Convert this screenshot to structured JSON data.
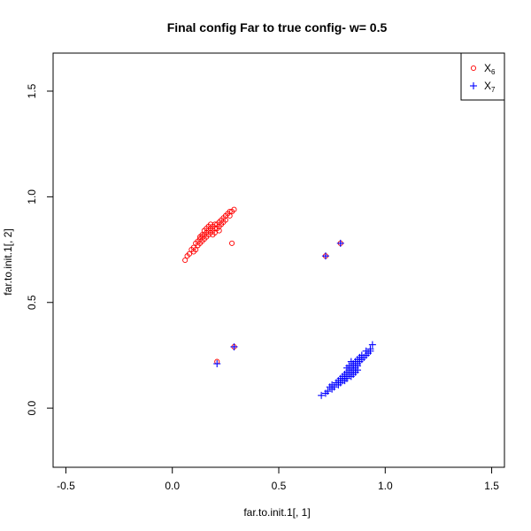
{
  "chart_data": {
    "type": "scatter",
    "title": "Final config Far to true config- w= 0.5",
    "xlabel": "far.to.init.1[, 1]",
    "ylabel": "far.to.init.1[, 2]",
    "xlim": [
      -0.56,
      1.56
    ],
    "ylim": [
      -0.28,
      1.68
    ],
    "xticks": [
      -0.5,
      0.0,
      0.5,
      1.0,
      1.5
    ],
    "xtick_labels": [
      "-0.5",
      "0.0",
      "0.5",
      "1.0",
      "1.5"
    ],
    "yticks": [
      0.0,
      0.5,
      1.0,
      1.5
    ],
    "ytick_labels": [
      "0.0",
      "0.5",
      "1.0",
      "1.5"
    ],
    "grid": false,
    "legend_position": "top-right",
    "series": [
      {
        "name": "X",
        "subscript": "6",
        "marker": "circle",
        "color": "#ff0000",
        "points": [
          [
            0.06,
            0.7
          ],
          [
            0.07,
            0.72
          ],
          [
            0.08,
            0.73
          ],
          [
            0.09,
            0.75
          ],
          [
            0.1,
            0.76
          ],
          [
            0.11,
            0.78
          ],
          [
            0.12,
            0.79
          ],
          [
            0.13,
            0.8
          ],
          [
            0.14,
            0.81
          ],
          [
            0.15,
            0.82
          ],
          [
            0.16,
            0.83
          ],
          [
            0.17,
            0.84
          ],
          [
            0.18,
            0.85
          ],
          [
            0.19,
            0.86
          ],
          [
            0.2,
            0.87
          ],
          [
            0.21,
            0.87
          ],
          [
            0.22,
            0.88
          ],
          [
            0.23,
            0.89
          ],
          [
            0.24,
            0.9
          ],
          [
            0.25,
            0.91
          ],
          [
            0.26,
            0.92
          ],
          [
            0.27,
            0.93
          ],
          [
            0.28,
            0.93
          ],
          [
            0.29,
            0.94
          ],
          [
            0.12,
            0.77
          ],
          [
            0.13,
            0.78
          ],
          [
            0.14,
            0.79
          ],
          [
            0.15,
            0.8
          ],
          [
            0.16,
            0.81
          ],
          [
            0.17,
            0.82
          ],
          [
            0.18,
            0.83
          ],
          [
            0.19,
            0.84
          ],
          [
            0.2,
            0.85
          ],
          [
            0.21,
            0.85
          ],
          [
            0.22,
            0.86
          ],
          [
            0.23,
            0.87
          ],
          [
            0.24,
            0.88
          ],
          [
            0.15,
            0.84
          ],
          [
            0.16,
            0.85
          ],
          [
            0.17,
            0.86
          ],
          [
            0.18,
            0.87
          ],
          [
            0.14,
            0.82
          ],
          [
            0.13,
            0.81
          ],
          [
            0.11,
            0.75
          ],
          [
            0.1,
            0.74
          ],
          [
            0.22,
            0.84
          ],
          [
            0.25,
            0.89
          ],
          [
            0.27,
            0.91
          ],
          [
            0.19,
            0.82
          ],
          [
            0.2,
            0.83
          ],
          [
            0.28,
            0.78
          ],
          [
            0.79,
            0.78
          ],
          [
            0.72,
            0.72
          ],
          [
            0.21,
            0.22
          ],
          [
            0.29,
            0.29
          ]
        ]
      },
      {
        "name": "X",
        "subscript": "7",
        "marker": "plus",
        "color": "#0000ff",
        "points": [
          [
            0.7,
            0.06
          ],
          [
            0.72,
            0.07
          ],
          [
            0.73,
            0.08
          ],
          [
            0.75,
            0.09
          ],
          [
            0.76,
            0.1
          ],
          [
            0.78,
            0.11
          ],
          [
            0.79,
            0.12
          ],
          [
            0.8,
            0.13
          ],
          [
            0.81,
            0.14
          ],
          [
            0.82,
            0.15
          ],
          [
            0.83,
            0.16
          ],
          [
            0.84,
            0.17
          ],
          [
            0.85,
            0.18
          ],
          [
            0.86,
            0.19
          ],
          [
            0.87,
            0.2
          ],
          [
            0.87,
            0.21
          ],
          [
            0.88,
            0.22
          ],
          [
            0.89,
            0.23
          ],
          [
            0.9,
            0.24
          ],
          [
            0.91,
            0.25
          ],
          [
            0.92,
            0.26
          ],
          [
            0.93,
            0.27
          ],
          [
            0.93,
            0.28
          ],
          [
            0.94,
            0.3
          ],
          [
            0.77,
            0.12
          ],
          [
            0.78,
            0.13
          ],
          [
            0.79,
            0.14
          ],
          [
            0.8,
            0.15
          ],
          [
            0.81,
            0.16
          ],
          [
            0.82,
            0.17
          ],
          [
            0.83,
            0.18
          ],
          [
            0.84,
            0.19
          ],
          [
            0.85,
            0.2
          ],
          [
            0.85,
            0.21
          ],
          [
            0.86,
            0.22
          ],
          [
            0.87,
            0.23
          ],
          [
            0.88,
            0.24
          ],
          [
            0.84,
            0.15
          ],
          [
            0.85,
            0.16
          ],
          [
            0.86,
            0.17
          ],
          [
            0.87,
            0.18
          ],
          [
            0.82,
            0.14
          ],
          [
            0.81,
            0.13
          ],
          [
            0.75,
            0.11
          ],
          [
            0.74,
            0.1
          ],
          [
            0.84,
            0.22
          ],
          [
            0.89,
            0.25
          ],
          [
            0.91,
            0.27
          ],
          [
            0.82,
            0.19
          ],
          [
            0.83,
            0.2
          ],
          [
            0.79,
            0.78
          ],
          [
            0.72,
            0.72
          ],
          [
            0.21,
            0.21
          ],
          [
            0.29,
            0.29
          ]
        ]
      }
    ]
  }
}
